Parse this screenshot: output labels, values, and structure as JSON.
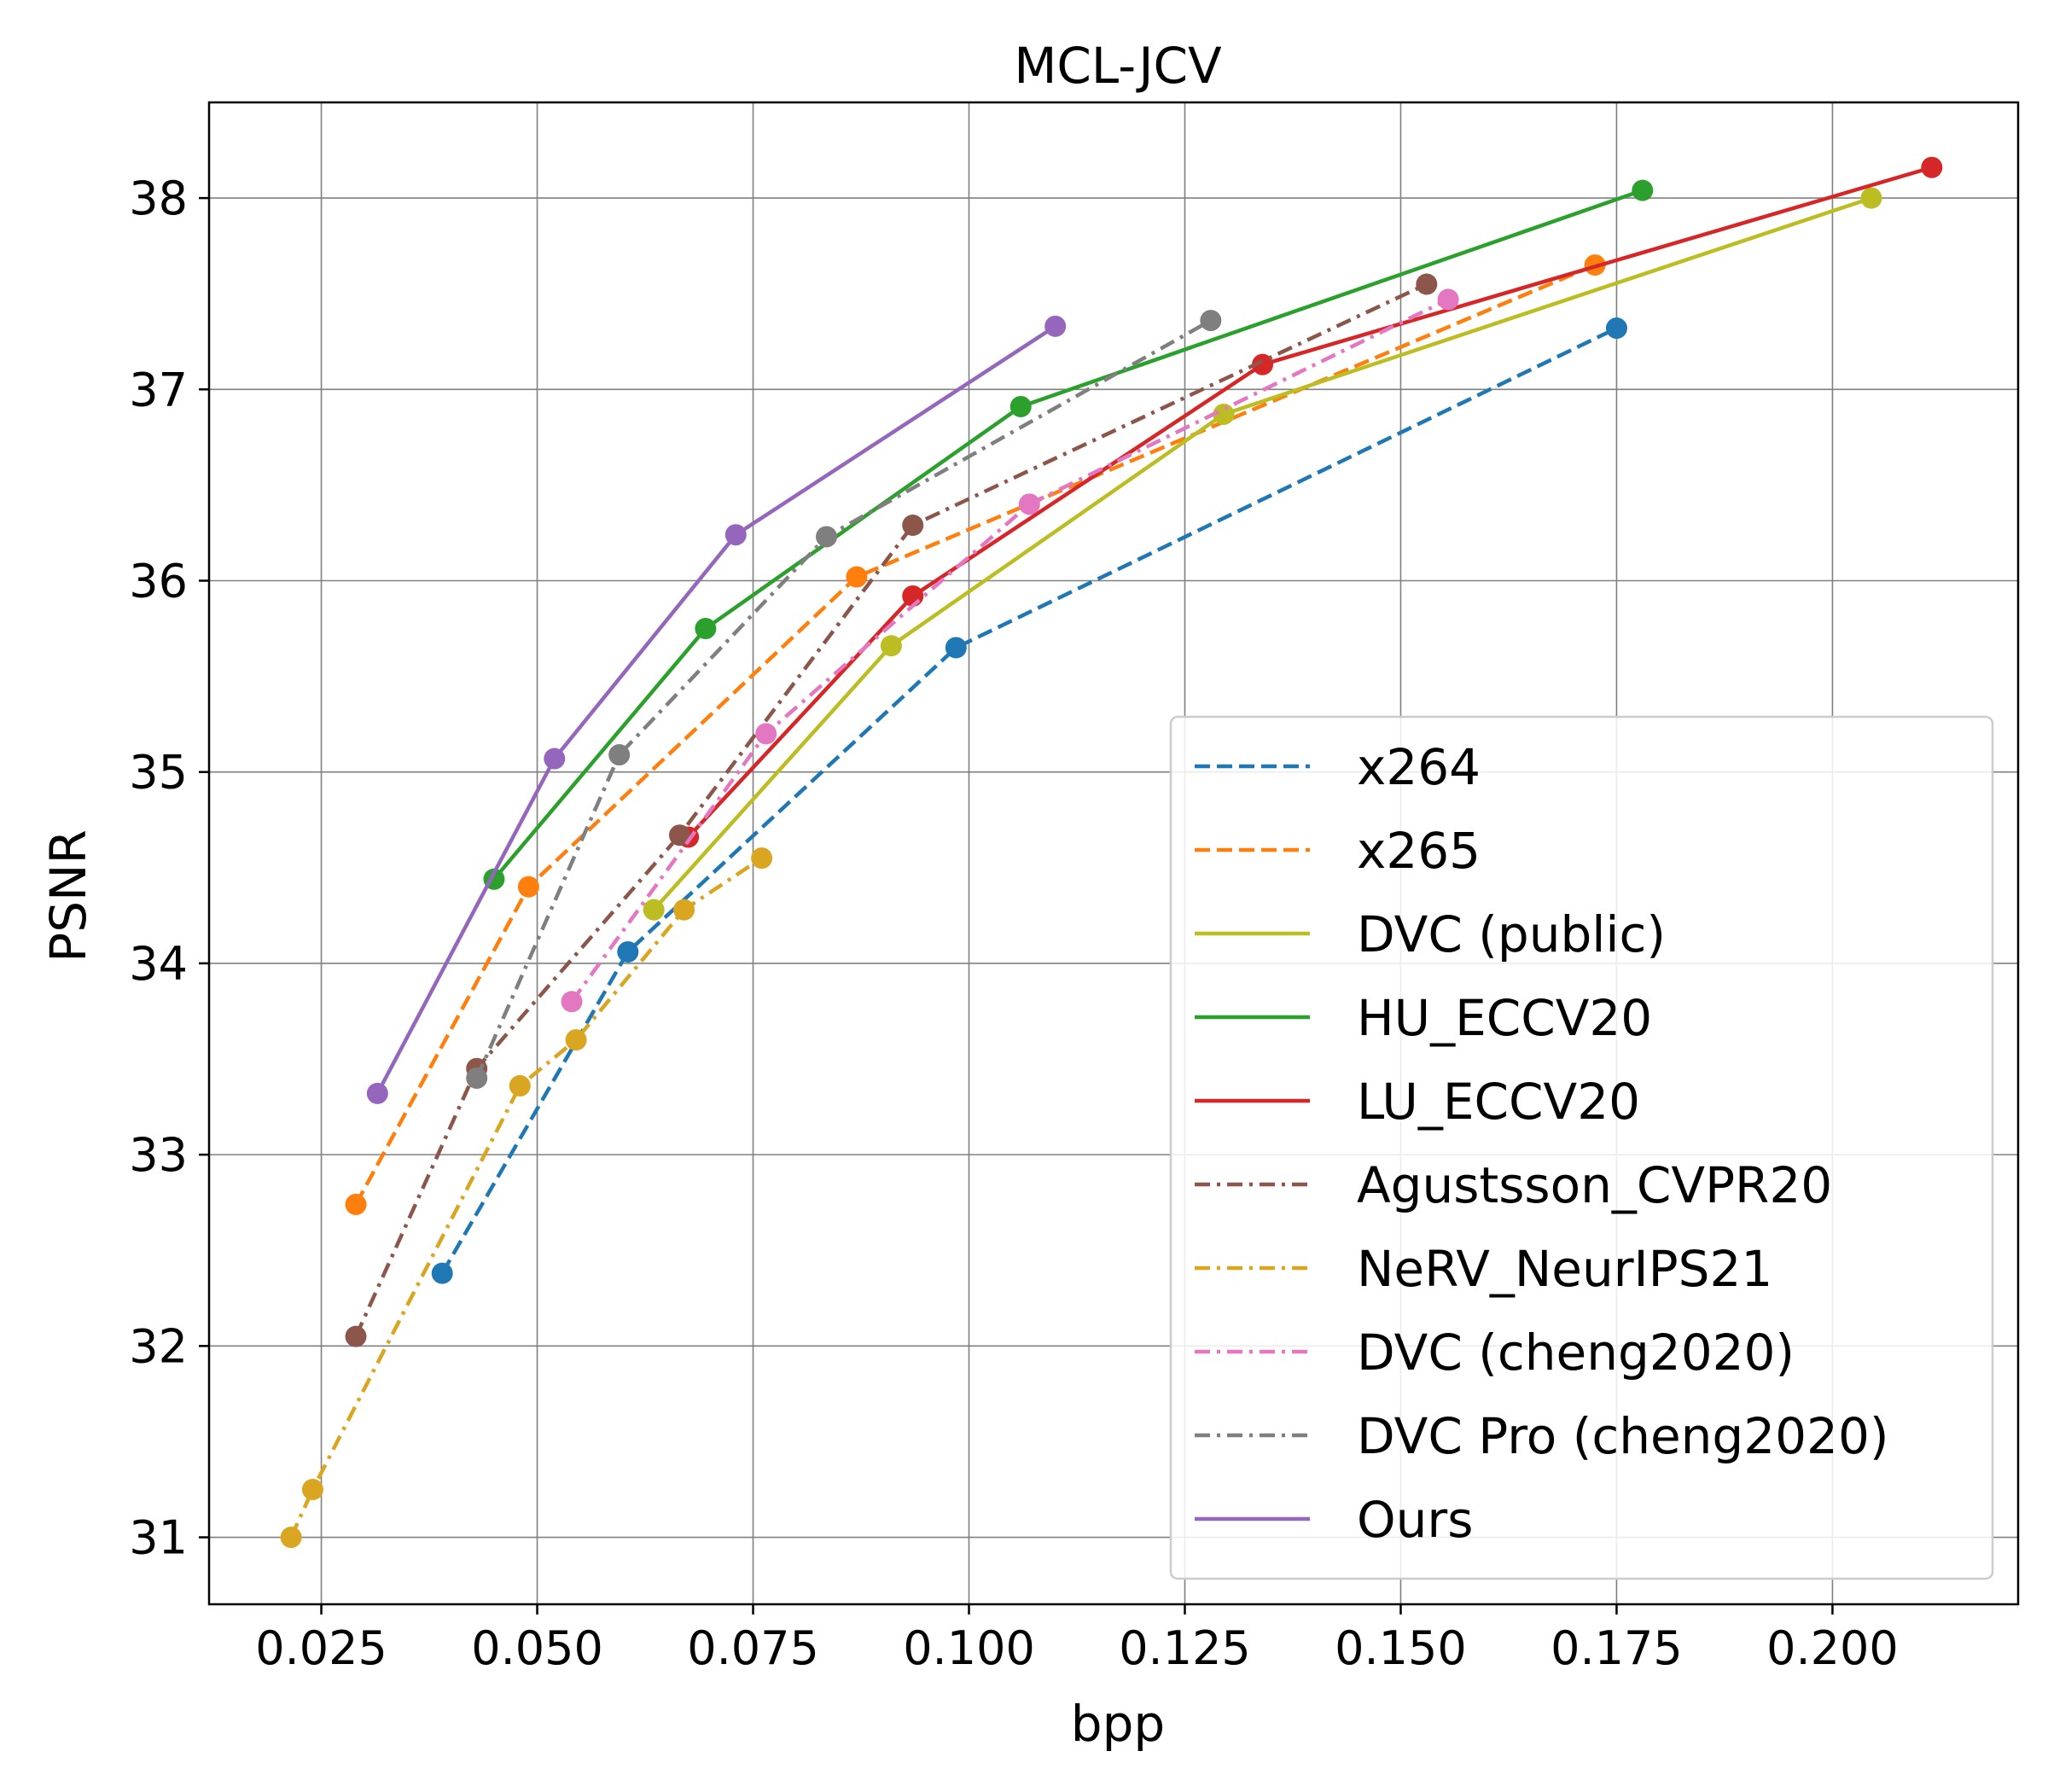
{
  "chart_data": {
    "type": "line",
    "title": "MCL-JCV",
    "xlabel": "bpp",
    "ylabel": "PSNR",
    "xlim": [
      0.012,
      0.2215
    ],
    "ylim": [
      30.65,
      38.5
    ],
    "xticks": [
      0.025,
      0.05,
      0.075,
      0.1,
      0.125,
      0.15,
      0.175,
      0.2
    ],
    "xtick_labels": [
      "0.025",
      "0.050",
      "0.075",
      "0.100",
      "0.125",
      "0.150",
      "0.175",
      "0.200"
    ],
    "yticks": [
      31,
      32,
      33,
      34,
      35,
      36,
      37,
      38
    ],
    "ytick_labels": [
      "31",
      "32",
      "33",
      "34",
      "35",
      "36",
      "37",
      "38"
    ],
    "grid": true,
    "legend_position": "lower-right",
    "series": [
      {
        "name": "x264",
        "color": "#1f77b4",
        "dash": "dashed",
        "x": [
          0.039,
          0.0605,
          0.0985,
          0.175
        ],
        "y": [
          32.38,
          34.06,
          35.65,
          37.32
        ]
      },
      {
        "name": "x265",
        "color": "#ff7f0e",
        "dash": "dashed",
        "x": [
          0.029,
          0.049,
          0.087,
          0.1725
        ],
        "y": [
          32.74,
          34.4,
          36.02,
          37.65
        ]
      },
      {
        "name": "DVC (public)",
        "color": "#bcbd22",
        "dash": "solid",
        "x": [
          0.0635,
          0.091,
          0.1295,
          0.2045
        ],
        "y": [
          34.28,
          35.66,
          36.87,
          38.0
        ]
      },
      {
        "name": "HU_ECCV20",
        "color": "#2ca02c",
        "dash": "solid",
        "x": [
          0.045,
          0.0695,
          0.106,
          0.178
        ],
        "y": [
          34.44,
          35.75,
          36.91,
          38.04
        ]
      },
      {
        "name": "LU_ECCV20",
        "color": "#d62728",
        "dash": "solid",
        "x": [
          0.0675,
          0.0935,
          0.134,
          0.2115
        ],
        "y": [
          34.66,
          35.92,
          37.13,
          38.16
        ]
      },
      {
        "name": "Agustsson_CVPR20",
        "color": "#8c564b",
        "dash": "dashdot",
        "x": [
          0.029,
          0.043,
          0.0665,
          0.0935,
          0.153
        ],
        "y": [
          32.05,
          33.45,
          34.67,
          36.29,
          37.55
        ]
      },
      {
        "name": "NeRV_NeurIPS21",
        "color": "#daa520",
        "dash": "dashdot",
        "x": [
          0.0215,
          0.024,
          0.048,
          0.0545,
          0.067,
          0.076
        ],
        "y": [
          31.0,
          31.25,
          33.36,
          33.6,
          34.28,
          34.55
        ]
      },
      {
        "name": "DVC (cheng2020)",
        "color": "#e377c2",
        "dash": "dashdot",
        "x": [
          0.054,
          0.0765,
          0.107,
          0.1555
        ],
        "y": [
          33.8,
          35.2,
          36.4,
          37.47
        ]
      },
      {
        "name": "DVC Pro (cheng2020)",
        "color": "#7f7f7f",
        "dash": "dashdot",
        "x": [
          0.043,
          0.0595,
          0.0835,
          0.128
        ],
        "y": [
          33.4,
          35.09,
          36.23,
          37.36
        ]
      },
      {
        "name": "Ours",
        "color": "#9467bd",
        "dash": "solid",
        "x": [
          0.0315,
          0.052,
          0.073,
          0.11
        ],
        "y": [
          33.32,
          35.07,
          36.24,
          37.33
        ]
      }
    ]
  }
}
